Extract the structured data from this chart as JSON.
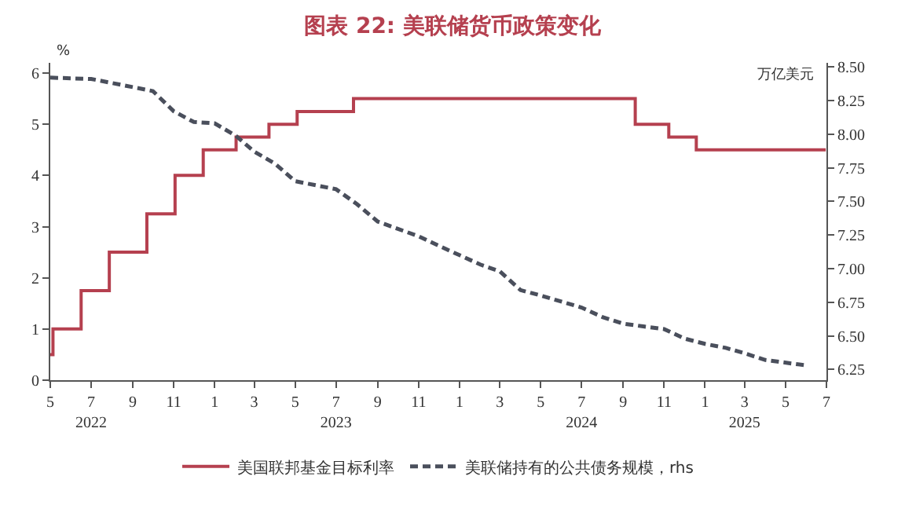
{
  "chart_data": {
    "type": "line",
    "title": "图表 22: 美联储货币政策变化",
    "ylabel": "%",
    "y2label": "万亿美元",
    "xlim": [
      "2022-05-01",
      "2025-07-01"
    ],
    "xticks": [
      {
        "value": "2022-05-01",
        "label": "5"
      },
      {
        "value": "2022-07-01",
        "label": "7\n2022"
      },
      {
        "value": "2022-09-01",
        "label": "9"
      },
      {
        "value": "2022-11-01",
        "label": "11"
      },
      {
        "value": "2023-01-01",
        "label": "1"
      },
      {
        "value": "2023-03-01",
        "label": "3"
      },
      {
        "value": "2023-05-01",
        "label": "5"
      },
      {
        "value": "2023-07-01",
        "label": "7\n2023"
      },
      {
        "value": "2023-09-01",
        "label": "9"
      },
      {
        "value": "2023-11-01",
        "label": "11"
      },
      {
        "value": "2024-01-01",
        "label": "1"
      },
      {
        "value": "2024-03-01",
        "label": "3"
      },
      {
        "value": "2024-05-01",
        "label": "5"
      },
      {
        "value": "2024-07-01",
        "label": "7\n2024"
      },
      {
        "value": "2024-09-01",
        "label": "9"
      },
      {
        "value": "2024-11-01",
        "label": "11"
      },
      {
        "value": "2025-01-01",
        "label": "1"
      },
      {
        "value": "2025-03-01",
        "label": "3\n2025"
      },
      {
        "value": "2025-05-01",
        "label": "5"
      },
      {
        "value": "2025-07-01",
        "label": "7"
      }
    ],
    "ylim": [
      0,
      6.2
    ],
    "yticks": [
      0,
      1,
      2,
      3,
      4,
      5,
      6
    ],
    "y2lim": [
      6.17,
      8.53
    ],
    "y2ticks": [
      6.25,
      {
        "value": 6.5,
        "label": "6.50"
      },
      6.75,
      {
        "value": 7,
        "label": "7.00"
      },
      7.25,
      {
        "value": 7.5,
        "label": "7.50"
      },
      7.75,
      {
        "value": 8,
        "label": "8.00"
      },
      8.25,
      {
        "value": 8.5,
        "label": "8.50"
      }
    ],
    "grid": false,
    "legend": "bottom",
    "marker": "none",
    "series": [
      {
        "name": "美国联邦基金目标利率",
        "type": "step",
        "color": "#b5404f",
        "line_style": "solid",
        "x": [
          "2022-05-01",
          "2022-05-05",
          "2022-06-16",
          "2022-07-28",
          "2022-09-22",
          "2022-11-03",
          "2022-12-15",
          "2023-02-02",
          "2023-03-23",
          "2023-05-04",
          "2023-07-27",
          "2024-09-19",
          "2024-11-08",
          "2024-12-19",
          "2025-06-30"
        ],
        "values": [
          0.5,
          1,
          1.75,
          2.5,
          3.25,
          4,
          4.5,
          4.75,
          5,
          5.25,
          5.5,
          5,
          4.75,
          4.5,
          4.5
        ]
      },
      {
        "name": "美联储持有的公共债务规模，rhs",
        "axis": "y2",
        "color": "#4a4f5c",
        "line_style": "dashed",
        "x": [
          "2022-05-01",
          "2022-07-01",
          "2022-08-01",
          "2022-10-01",
          "2022-11-01",
          "2022-12-01",
          "2023-01-01",
          "2023-02-01",
          "2023-03-01",
          "2023-04-01",
          "2023-05-01",
          "2023-07-01",
          "2023-08-01",
          "2023-09-01",
          "2023-11-01",
          "2023-12-01",
          "2024-01-01",
          "2024-02-01",
          "2024-03-01",
          "2024-04-01",
          "2024-05-01",
          "2024-07-01",
          "2024-08-01",
          "2024-09-01",
          "2024-10-01",
          "2024-11-01",
          "2024-12-01",
          "2025-01-01",
          "2025-02-01",
          "2025-03-01",
          "2025-04-01",
          "2025-06-01"
        ],
        "values": [
          8.42,
          8.41,
          8.38,
          8.32,
          8.17,
          8.09,
          8.08,
          7.99,
          7.87,
          7.78,
          7.65,
          7.59,
          7.48,
          7.35,
          7.24,
          7.17,
          7.1,
          7.03,
          6.98,
          6.84,
          6.8,
          6.71,
          6.64,
          6.59,
          6.57,
          6.55,
          6.48,
          6.44,
          6.41,
          6.37,
          6.32,
          6.28
        ]
      }
    ]
  }
}
